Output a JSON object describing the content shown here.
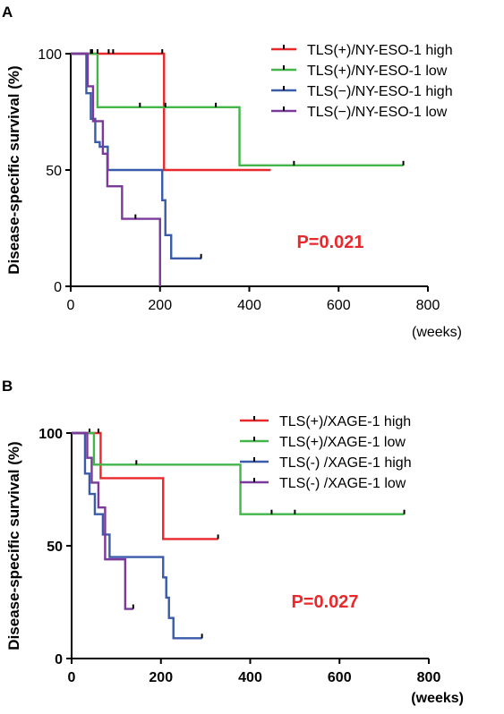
{
  "colors": {
    "red": "#e8282b",
    "green": "#43b649",
    "blue": "#3a5ba9",
    "purple": "#7b3a9b"
  },
  "chart_data": [
    {
      "panel": "A",
      "type": "line",
      "ylabel": "Disease-specific survival (%)",
      "xunit": "(weeks)",
      "xlim": [
        0,
        800
      ],
      "ylim": [
        0,
        100
      ],
      "xticks": [
        "0",
        "200",
        "400",
        "600",
        "800"
      ],
      "yticks": [
        "0",
        "50",
        "100"
      ],
      "pvalue": "P=0.021",
      "legend_position": "top-right",
      "series": [
        {
          "name": "TLS(+)/NY-ESO-1 high",
          "color": "#e8282b",
          "steps": [
            [
              0,
              100
            ],
            [
              209,
              50
            ],
            [
              448,
              50
            ]
          ],
          "censored": [
            [
              95,
              100
            ],
            [
              205,
              100
            ]
          ]
        },
        {
          "name": "TLS(+)/NY-ESO-1 low",
          "color": "#43b649",
          "steps": [
            [
              0,
              100
            ],
            [
              60,
              77
            ],
            [
              378,
              52
            ],
            [
              745,
              52
            ]
          ],
          "censored": [
            [
              48,
              100
            ],
            [
              60,
              100
            ],
            [
              155,
              77
            ],
            [
              212,
              77
            ],
            [
              325,
              77
            ],
            [
              500,
              52
            ],
            [
              745,
              52
            ]
          ]
        },
        {
          "name": "TLS(−)/NY-ESO-1 high",
          "color": "#3a5ba9",
          "steps": [
            [
              0,
              100
            ],
            [
              35,
              83
            ],
            [
              45,
              72
            ],
            [
              55,
              62
            ],
            [
              65,
              60
            ],
            [
              83,
              50
            ],
            [
              205,
              37
            ],
            [
              212,
              22
            ],
            [
              225,
              12
            ],
            [
              293,
              12
            ]
          ],
          "censored": [
            [
              45,
              100
            ],
            [
              85,
              100
            ],
            [
              292,
              12
            ]
          ]
        },
        {
          "name": "TLS(−)/NY-ESO-1 low",
          "color": "#7b3a9b",
          "steps": [
            [
              0,
              100
            ],
            [
              38,
              86
            ],
            [
              50,
              71
            ],
            [
              72,
              57
            ],
            [
              82,
              43
            ],
            [
              115,
              29
            ],
            [
              200,
              0
            ]
          ],
          "censored": [
            [
              145,
              29
            ]
          ]
        }
      ]
    },
    {
      "panel": "B",
      "type": "line",
      "ylabel": "Disease-specific survival (%)",
      "xunit": "(weeks)",
      "xlim": [
        0,
        800
      ],
      "ylim": [
        0,
        100
      ],
      "xticks": [
        "0",
        "200",
        "400",
        "600",
        "800"
      ],
      "yticks": [
        "0",
        "50",
        "100"
      ],
      "pvalue": "P=0.027",
      "legend_position": "top-right",
      "series": [
        {
          "name": "TLS(+)/XAGE-1 high",
          "color": "#e8282b",
          "steps": [
            [
              0,
              100
            ],
            [
              65,
              80
            ],
            [
              205,
              53
            ],
            [
              328,
              53
            ]
          ],
          "censored": [
            [
              40,
              100
            ],
            [
              60,
              100
            ],
            [
              328,
              53
            ]
          ]
        },
        {
          "name": "TLS(+)/XAGE-1 low",
          "color": "#43b649",
          "steps": [
            [
              0,
              100
            ],
            [
              50,
              86
            ],
            [
              378,
              64
            ],
            [
              745,
              64
            ]
          ],
          "censored": [
            [
              145,
              86
            ],
            [
              448,
              64
            ],
            [
              500,
              64
            ],
            [
              745,
              64
            ]
          ]
        },
        {
          "name": "TLS(-) /XAGE-1 high",
          "color": "#3a5ba9",
          "steps": [
            [
              0,
              100
            ],
            [
              30,
              82
            ],
            [
              40,
              73
            ],
            [
              52,
              64
            ],
            [
              70,
              55
            ],
            [
              85,
              45
            ],
            [
              205,
              36
            ],
            [
              212,
              27
            ],
            [
              218,
              18
            ],
            [
              228,
              9
            ],
            [
              292,
              9
            ]
          ],
          "censored": [
            [
              292,
              9
            ]
          ]
        },
        {
          "name": "TLS(-) /XAGE-1 low",
          "color": "#7b3a9b",
          "steps": [
            [
              0,
              100
            ],
            [
              35,
              89
            ],
            [
              45,
              78
            ],
            [
              60,
              67
            ],
            [
              75,
              44
            ],
            [
              120,
              22
            ],
            [
              138,
              22
            ]
          ],
          "censored": [
            [
              138,
              22
            ]
          ]
        }
      ]
    }
  ]
}
